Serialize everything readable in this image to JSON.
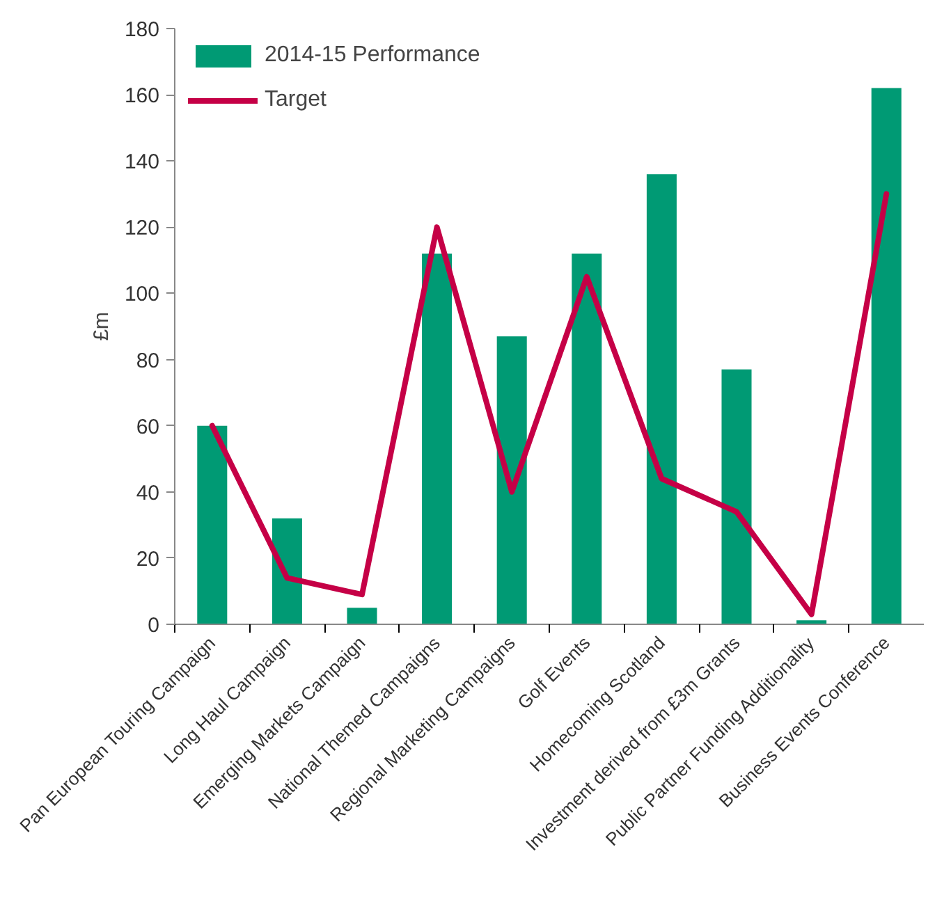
{
  "chart_data": {
    "type": "bar",
    "ylabel": "£m",
    "categories": [
      "Pan European Touring Campaign",
      "Long Haul Campaign",
      "Emerging Markets Campaign",
      "National Themed Campaigns",
      "Regional Marketing Campaigns",
      "Golf Events",
      "Homecoming Scotland",
      "Investment derived from £3m Grants",
      "Public Partner Funding Additionality",
      "Business Events Conference"
    ],
    "series": [
      {
        "name": "2014-15 Performance",
        "color": "#009a74",
        "values": [
          60,
          32,
          5,
          112,
          87,
          112,
          136,
          77,
          1.2,
          162
        ]
      },
      {
        "name": "Target",
        "type": "line",
        "color": "#c50046",
        "values": [
          60,
          14,
          9,
          120,
          40,
          105,
          44,
          34,
          3,
          130
        ]
      }
    ],
    "ylim": [
      0,
      180
    ],
    "yticks": [
      0,
      20,
      40,
      60,
      80,
      100,
      120,
      140,
      160,
      180
    ],
    "grid": false,
    "legend": "top left"
  }
}
